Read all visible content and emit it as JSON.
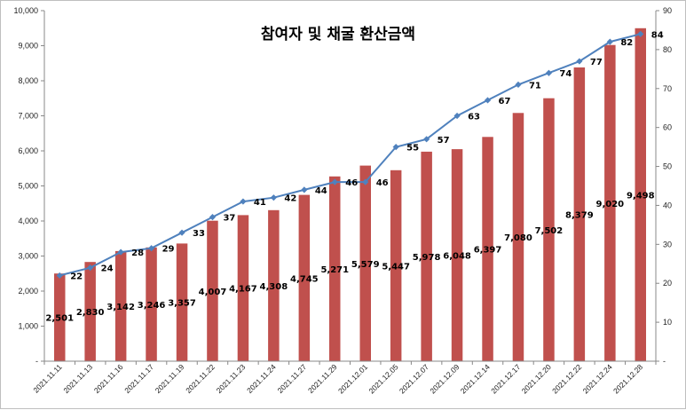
{
  "chart_data": {
    "type": "bar+line",
    "title": "참여자 및 채굴 환산금액",
    "categories": [
      "2021.11.11",
      "2021.11.13",
      "2021.11.16",
      "2021.11.17",
      "2021.11.19",
      "2021.11.22",
      "2021.11.23",
      "2021.11.24",
      "2021.11.27",
      "2021.11.29",
      "2021.12.01",
      "2021.12.05",
      "2021.12.07",
      "2021.12.09",
      "2021.12.14",
      "2021.12.17",
      "2021.12.20",
      "2021.12.22",
      "2021.12.24",
      "2021.12.28"
    ],
    "series": [
      {
        "name": "채굴 환산금액",
        "type": "bar",
        "axis": "left",
        "color": "#c0504d",
        "values": [
          2501,
          2830,
          3142,
          3246,
          3357,
          4007,
          4167,
          4308,
          4745,
          5271,
          5579,
          5447,
          5978,
          6048,
          6397,
          7080,
          7502,
          8379,
          9020,
          9498
        ],
        "labels": [
          "2,501",
          "2,830",
          "3,142",
          "3,246",
          "3,357",
          "4,007",
          "4,167",
          "4,308",
          "4,745",
          "5,271",
          "5,579",
          "5,447",
          "5,978",
          "6,048",
          "6,397",
          "7,080",
          "7,502",
          "8,379",
          "9,020",
          "9,498"
        ]
      },
      {
        "name": "참여자",
        "type": "line",
        "axis": "right",
        "color": "#4f81bd",
        "values": [
          22,
          24,
          28,
          29,
          33,
          37,
          41,
          42,
          44,
          46,
          46,
          55,
          57,
          63,
          67,
          71,
          74,
          77,
          82,
          84
        ],
        "labels": [
          "22",
          "24",
          "28",
          "29",
          "33",
          "37",
          "41",
          "42",
          "44",
          "46",
          "46",
          "55",
          "57",
          "63",
          "67",
          "71",
          "74",
          "77",
          "82",
          "84"
        ]
      }
    ],
    "left_axis": {
      "range": [
        0,
        10000
      ],
      "ticks": [
        0,
        1000,
        2000,
        3000,
        4000,
        5000,
        6000,
        7000,
        8000,
        9000,
        10000
      ],
      "tick_labels": [
        "-",
        "1,000",
        "2,000",
        "3,000",
        "4,000",
        "5,000",
        "6,000",
        "7,000",
        "8,000",
        "9,000",
        "10,000"
      ]
    },
    "right_axis": {
      "range": [
        0,
        90
      ],
      "ticks": [
        0,
        10,
        20,
        30,
        40,
        50,
        60,
        70,
        80,
        90
      ],
      "tick_labels": [
        "-",
        "10",
        "20",
        "30",
        "40",
        "50",
        "60",
        "70",
        "80",
        "90"
      ]
    },
    "grid": false,
    "legend": "none"
  }
}
